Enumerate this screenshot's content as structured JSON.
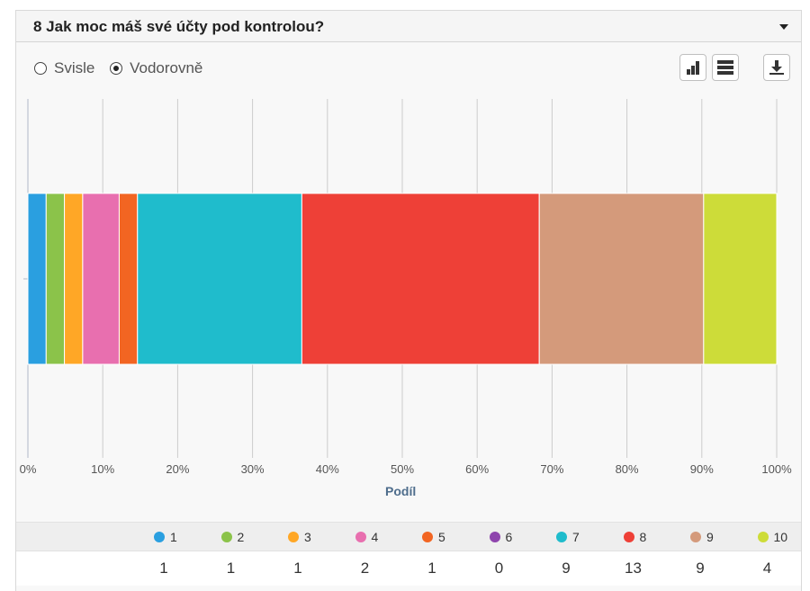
{
  "header": {
    "title": "8 Jak moc máš své účty pod kontrolou?"
  },
  "orientation": {
    "options": [
      "Svisle",
      "Vodorovně"
    ],
    "selected": "Vodorovně"
  },
  "toolbar": {
    "icons": [
      "bar-chart-icon",
      "stacked-bar-icon",
      "download-icon"
    ]
  },
  "chart_data": {
    "type": "bar",
    "orientation": "horizontal",
    "stacked": true,
    "xlabel": "Podíl",
    "xlim": [
      0,
      100
    ],
    "ticks": [
      "0%",
      "10%",
      "20%",
      "30%",
      "40%",
      "50%",
      "60%",
      "70%",
      "80%",
      "90%",
      "100%"
    ],
    "grid": true,
    "series": [
      {
        "name": "1",
        "value": 1,
        "color": "#2a9fe0"
      },
      {
        "name": "2",
        "value": 1,
        "color": "#8bc34a"
      },
      {
        "name": "3",
        "value": 1,
        "color": "#ffa726"
      },
      {
        "name": "4",
        "value": 2,
        "color": "#e86faf"
      },
      {
        "name": "5",
        "value": 1,
        "color": "#f26522"
      },
      {
        "name": "6",
        "value": 0,
        "color": "#8e44ad"
      },
      {
        "name": "7",
        "value": 9,
        "color": "#1fbccc"
      },
      {
        "name": "8",
        "value": 13,
        "color": "#ee4037"
      },
      {
        "name": "9",
        "value": 9,
        "color": "#d49a7b"
      },
      {
        "name": "10",
        "value": 4,
        "color": "#cddc39"
      }
    ]
  }
}
